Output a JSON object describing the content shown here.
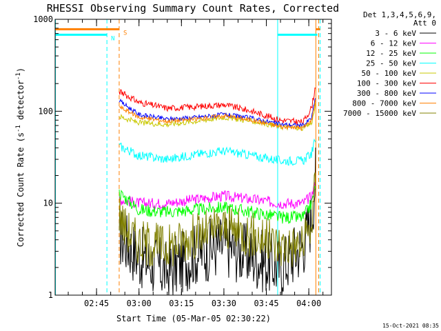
{
  "chart_data": {
    "type": "line",
    "title": "RHESSI Observing Summary Count Rates, Corrected",
    "xlabel": "Start Time (05-Mar-05 02:30:22)",
    "ylabel": "Corrected Count Rate (s",
    "ylabel_sup1": "-1",
    "ylabel_mid": " detector",
    "ylabel_sup2": "-1",
    "ylabel_end": ")",
    "xlim": [
      "02:30:22",
      "04:08:00"
    ],
    "ylim": [
      1,
      1000
    ],
    "yscale": "log",
    "xticks": [
      "02:45",
      "03:00",
      "03:15",
      "03:30",
      "03:45",
      "04:00"
    ],
    "yticks": [
      "1",
      "10",
      "100",
      "1000"
    ],
    "legend_header": [
      "Det 1,3,4,5,6,9,",
      "Att 0"
    ],
    "legend_position": "right",
    "timestamp": "15-Oct-2021 08:35",
    "flags": [
      {
        "label": "S",
        "color": "#ff8000",
        "value": 780,
        "segments": [
          [
            "02:30:22",
            "02:53:00"
          ],
          [
            "04:02:30",
            "04:04:00"
          ]
        ],
        "markers": [
          "02:53:00"
        ]
      },
      {
        "label": "N",
        "color": "#00ffff",
        "value": 680,
        "segments": [
          [
            "02:30:22",
            "02:48:40"
          ],
          [
            "03:49:00",
            "04:03:00"
          ]
        ],
        "markers": [
          "02:48:40",
          "04:04:00"
        ]
      }
    ],
    "vlines": [
      {
        "time": "02:30:30",
        "color": "#00ffff",
        "dash": false
      },
      {
        "time": "02:48:40",
        "color": "#00ffff",
        "dash": true
      },
      {
        "time": "02:53:00",
        "color": "#ff8000",
        "dash": true
      },
      {
        "time": "03:49:00",
        "color": "#00ffff",
        "dash": false
      },
      {
        "time": "04:02:30",
        "color": "#ff8000",
        "dash": false
      },
      {
        "time": "04:03:30",
        "color": "#ff8000",
        "dash": true
      },
      {
        "time": "04:04:00",
        "color": "#00ffff",
        "dash": true
      }
    ],
    "series": [
      {
        "name": "3 - 6 keV",
        "color": "#000000",
        "noise": 0.35,
        "points": [
          [
            "02:53:00",
            4.5
          ],
          [
            "03:00:00",
            2.6
          ],
          [
            "03:10:00",
            1.8
          ],
          [
            "03:20:00",
            2.8
          ],
          [
            "03:30:00",
            3.5
          ],
          [
            "03:40:00",
            2.6
          ],
          [
            "03:50:00",
            2.0
          ],
          [
            "03:58:00",
            3.5
          ],
          [
            "04:01:00",
            7
          ],
          [
            "04:02:30",
            22
          ]
        ]
      },
      {
        "name": "6 - 12 keV",
        "color": "#ff00ff",
        "noise": 0.06,
        "points": [
          [
            "02:53:00",
            11
          ],
          [
            "03:00:00",
            10
          ],
          [
            "03:10:00",
            10
          ],
          [
            "03:20:00",
            11
          ],
          [
            "03:30:00",
            12
          ],
          [
            "03:40:00",
            11
          ],
          [
            "03:50:00",
            10
          ],
          [
            "03:58:00",
            10
          ],
          [
            "04:01:00",
            12
          ],
          [
            "04:02:30",
            18
          ]
        ]
      },
      {
        "name": "12 - 25 keV",
        "color": "#00ff00",
        "noise": 0.07,
        "points": [
          [
            "02:53:00",
            13
          ],
          [
            "03:00:00",
            8.5
          ],
          [
            "03:10:00",
            8
          ],
          [
            "03:20:00",
            8.5
          ],
          [
            "03:30:00",
            9
          ],
          [
            "03:40:00",
            8
          ],
          [
            "03:50:00",
            7
          ],
          [
            "03:58:00",
            7
          ],
          [
            "04:01:00",
            10
          ],
          [
            "04:02:30",
            16
          ]
        ]
      },
      {
        "name": "25 - 50 keV",
        "color": "#00ffff",
        "noise": 0.05,
        "points": [
          [
            "02:53:00",
            42
          ],
          [
            "03:00:00",
            33
          ],
          [
            "03:10:00",
            30
          ],
          [
            "03:20:00",
            34
          ],
          [
            "03:30:00",
            37
          ],
          [
            "03:40:00",
            33
          ],
          [
            "03:50:00",
            29
          ],
          [
            "03:58:00",
            29
          ],
          [
            "04:01:00",
            35
          ],
          [
            "04:02:30",
            52
          ]
        ]
      },
      {
        "name": "50 - 100 keV",
        "color": "#c8c800",
        "noise": 0.03,
        "points": [
          [
            "02:53:00",
            88
          ],
          [
            "03:00:00",
            75
          ],
          [
            "03:10:00",
            72
          ],
          [
            "03:20:00",
            78
          ],
          [
            "03:30:00",
            86
          ],
          [
            "03:40:00",
            78
          ],
          [
            "03:50:00",
            68
          ],
          [
            "03:58:00",
            65
          ],
          [
            "04:01:00",
            75
          ],
          [
            "04:02:30",
            120
          ]
        ]
      },
      {
        "name": "100 - 300 keV",
        "color": "#ff0000",
        "noise": 0.035,
        "points": [
          [
            "02:53:00",
            165
          ],
          [
            "03:00:00",
            125
          ],
          [
            "03:10:00",
            108
          ],
          [
            "03:20:00",
            112
          ],
          [
            "03:30:00",
            118
          ],
          [
            "03:40:00",
            100
          ],
          [
            "03:50:00",
            80
          ],
          [
            "03:58:00",
            76
          ],
          [
            "04:01:00",
            110
          ],
          [
            "04:02:30",
            200
          ]
        ]
      },
      {
        "name": "300 - 800 keV",
        "color": "#0000ff",
        "noise": 0.025,
        "points": [
          [
            "02:53:00",
            130
          ],
          [
            "03:00:00",
            92
          ],
          [
            "03:10:00",
            82
          ],
          [
            "03:20:00",
            86
          ],
          [
            "03:30:00",
            92
          ],
          [
            "03:40:00",
            84
          ],
          [
            "03:50:00",
            72
          ],
          [
            "03:58:00",
            70
          ],
          [
            "04:01:00",
            85
          ],
          [
            "04:02:30",
            150
          ]
        ]
      },
      {
        "name": "800 - 7000 keV",
        "color": "#ff8000",
        "noise": 0.025,
        "points": [
          [
            "02:53:00",
            112
          ],
          [
            "03:00:00",
            86
          ],
          [
            "03:10:00",
            78
          ],
          [
            "03:20:00",
            82
          ],
          [
            "03:30:00",
            90
          ],
          [
            "03:40:00",
            80
          ],
          [
            "03:50:00",
            68
          ],
          [
            "03:58:00",
            66
          ],
          [
            "04:01:00",
            80
          ],
          [
            "04:02:30",
            140
          ]
        ]
      },
      {
        "name": "7000 - 15000 keV",
        "color": "#808000",
        "noise": 0.25,
        "points": [
          [
            "02:53:00",
            8
          ],
          [
            "02:55:00",
            5.5
          ],
          [
            "03:00:00",
            3.8
          ],
          [
            "03:10:00",
            3.4
          ],
          [
            "03:20:00",
            4.5
          ],
          [
            "03:30:00",
            5.5
          ],
          [
            "03:40:00",
            4.5
          ],
          [
            "03:50:00",
            3.5
          ],
          [
            "03:58:00",
            3.5
          ],
          [
            "04:01:00",
            6
          ],
          [
            "04:02:30",
            20
          ]
        ]
      }
    ]
  }
}
